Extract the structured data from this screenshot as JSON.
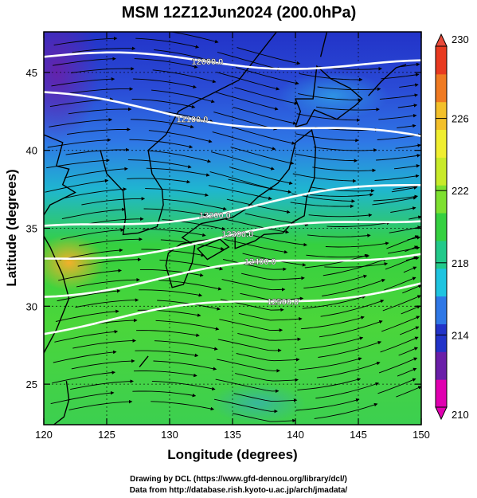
{
  "title": "MSM 12Z12Jun2024 (200.0hPa)",
  "xlabel": "Longitude (degrees)",
  "ylabel": "Latitude  (degrees)",
  "credit_line1": "Drawing by DCL (https://www.gfd-dennou.org/library/dcl/)",
  "credit_line2": "Data from http://database.rish.kyoto-u.ac.jp/arch/jmadata/",
  "chart_data": {
    "type": "heatmap",
    "description_fields": "temperature shading (K) with height contours (m) and wind streamlines",
    "xlim": [
      120,
      150
    ],
    "ylim": [
      22.4,
      47.6
    ],
    "x_ticks": [
      "120",
      "125",
      "130",
      "135",
      "140",
      "145",
      "150"
    ],
    "y_ticks": [
      "25",
      "30",
      "35",
      "40",
      "45"
    ],
    "colorbar": {
      "min": 210,
      "max": 230,
      "tick_labels": [
        "210",
        "214",
        "218",
        "222",
        "226",
        "230"
      ],
      "colors": [
        "#e000b0",
        "#6a1fa8",
        "#2233c8",
        "#2f78e6",
        "#1fc4e0",
        "#22c98a",
        "#35d040",
        "#7ee030",
        "#c8ea2a",
        "#f0ee30",
        "#f3c02a",
        "#ef7a22",
        "#e83a20"
      ]
    },
    "contours": [
      {
        "label": "12000.0",
        "lat_at_120": 46.0,
        "lat_at_150": 45.4
      },
      {
        "label": "12100.0",
        "lat_at_120": 43.4,
        "lat_at_150": 40.6
      },
      {
        "label": "12200.0",
        "lat_at_120": 34.8,
        "lat_at_150": 37.8
      },
      {
        "label": "12300.0",
        "lat_at_120": 33.0,
        "lat_at_150": 35.8
      },
      {
        "label": "12400.0",
        "lat_at_120": 30.9,
        "lat_at_150": 33.7
      },
      {
        "label": "12500.0",
        "lat_at_120": 28.6,
        "lat_at_150": 31.5
      }
    ]
  }
}
